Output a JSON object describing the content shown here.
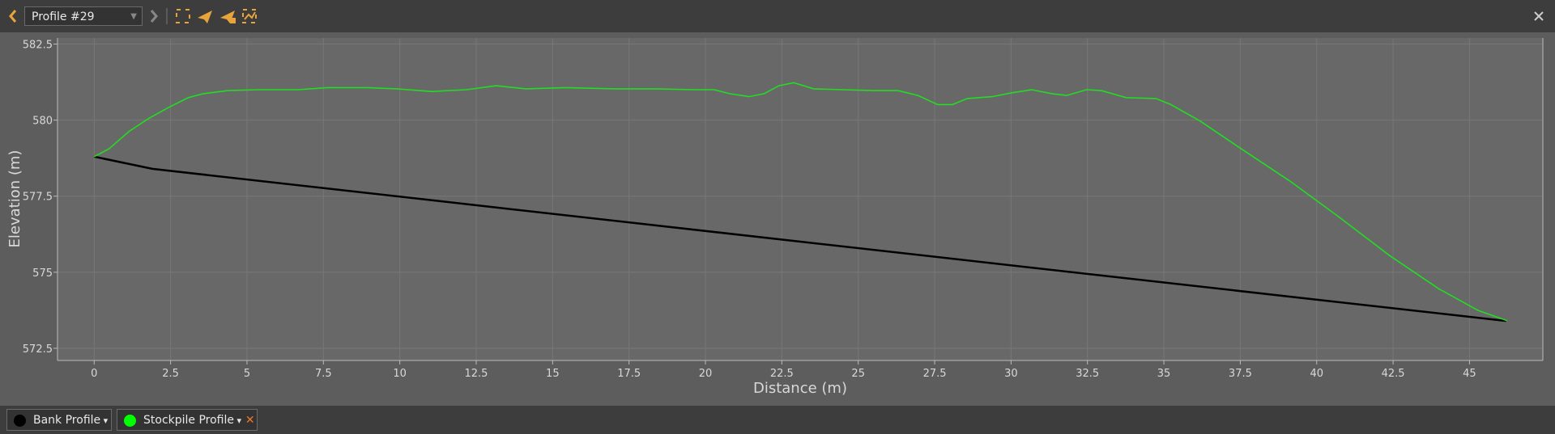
{
  "toolbar": {
    "profile_name": "Profile #29"
  },
  "chart_data": {
    "type": "line",
    "x_label": "Distance (m)",
    "y_label": "Elevation (m)",
    "xlim": [
      -1.2,
      47.4
    ],
    "ylim": [
      572.1,
      582.7
    ],
    "xticks": [
      0,
      2.5,
      5,
      7.5,
      10,
      12.5,
      15,
      17.5,
      20,
      22.5,
      25,
      27.5,
      30,
      32.5,
      35,
      37.5,
      40,
      42.5,
      45
    ],
    "yticks": [
      572.5,
      575,
      577.5,
      580,
      582.5
    ],
    "grid": true,
    "series": [
      {
        "name": "Bank Profile",
        "color": "#000000",
        "x": [
          0,
          1.9,
          46.2
        ],
        "values": [
          578.8,
          578.4,
          573.4
        ]
      },
      {
        "name": "Stockpile Profile",
        "color": "#22dd22",
        "x": [
          0,
          0.49,
          1.14,
          1.79,
          2.44,
          3.08,
          3.57,
          4.38,
          5.36,
          6.66,
          7.63,
          8.93,
          9.9,
          11.04,
          12.18,
          13.15,
          14.12,
          15.42,
          17.05,
          18.35,
          19.64,
          20.29,
          20.78,
          21.43,
          21.92,
          22.4,
          22.89,
          23.54,
          24.51,
          25.49,
          26.3,
          26.95,
          27.6,
          28.08,
          28.57,
          29.38,
          30.03,
          30.68,
          31.33,
          31.82,
          32.47,
          32.95,
          33.77,
          34.74,
          35.23,
          36.2,
          37.5,
          39.12,
          40.75,
          42.37,
          43.99,
          45.29,
          46.23
        ],
        "values": [
          578.8,
          579.06,
          579.63,
          580.06,
          580.42,
          580.74,
          580.87,
          580.97,
          581.0,
          581.0,
          581.07,
          581.07,
          581.03,
          580.94,
          581.0,
          581.13,
          581.03,
          581.07,
          581.03,
          581.03,
          581.0,
          581.0,
          580.87,
          580.77,
          580.87,
          581.13,
          581.23,
          581.03,
          581.0,
          580.97,
          580.97,
          580.81,
          580.51,
          580.51,
          580.71,
          580.77,
          580.9,
          581.0,
          580.87,
          580.81,
          581.0,
          580.97,
          580.74,
          580.71,
          580.51,
          579.96,
          579.08,
          578.0,
          576.8,
          575.56,
          574.46,
          573.74,
          573.41
        ]
      }
    ]
  }
}
